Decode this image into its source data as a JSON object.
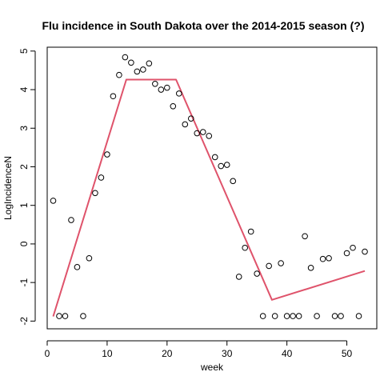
{
  "chart_data": {
    "type": "scatter",
    "title": "Flu incidence in South Dakota over the 2014-2015 season (?)",
    "xlabel": "week",
    "ylabel": "LogIncidenceN",
    "xlim": [
      0,
      55
    ],
    "ylim": [
      -2.2,
      5.1
    ],
    "x_ticks": [
      0,
      10,
      20,
      30,
      40,
      50
    ],
    "y_ticks": [
      -2,
      -1,
      0,
      1,
      2,
      3,
      4,
      5
    ],
    "grid": false,
    "point_color": "#000000",
    "line_color": "#DF536B",
    "series": [
      {
        "type": "scatter",
        "x": [
          1,
          2,
          3,
          4,
          5,
          6,
          7,
          8,
          9,
          10,
          11,
          12,
          13,
          14,
          15,
          16,
          17,
          18,
          19,
          20,
          21,
          22,
          23,
          24,
          25,
          26,
          27,
          28,
          29,
          30,
          31,
          32,
          33,
          34,
          35,
          36,
          37,
          38,
          39,
          40,
          41,
          42,
          43,
          44,
          45,
          46,
          47,
          48,
          49,
          50,
          51,
          52,
          53
        ],
        "y": [
          1.12,
          -1.87,
          -1.87,
          0.62,
          -0.6,
          -1.87,
          -0.37,
          1.32,
          1.72,
          2.32,
          3.83,
          4.38,
          4.84,
          4.7,
          4.47,
          4.52,
          4.68,
          4.15,
          4.0,
          4.05,
          3.57,
          3.9,
          3.1,
          3.25,
          2.87,
          2.9,
          2.8,
          2.25,
          2.02,
          2.05,
          1.63,
          -0.85,
          -0.1,
          0.32,
          -0.77,
          -1.87,
          -0.57,
          -1.87,
          -0.5,
          -1.87,
          -1.87,
          -1.87,
          0.2,
          -0.62,
          -1.87,
          -0.39,
          -0.37,
          -1.87,
          -1.87,
          -0.24,
          -0.1,
          -1.87,
          -0.2
        ]
      },
      {
        "type": "line",
        "x": [
          1,
          13.2,
          21.5,
          37.5,
          53
        ],
        "y": [
          -1.88,
          4.26,
          4.26,
          -1.45,
          -0.7
        ]
      }
    ]
  }
}
